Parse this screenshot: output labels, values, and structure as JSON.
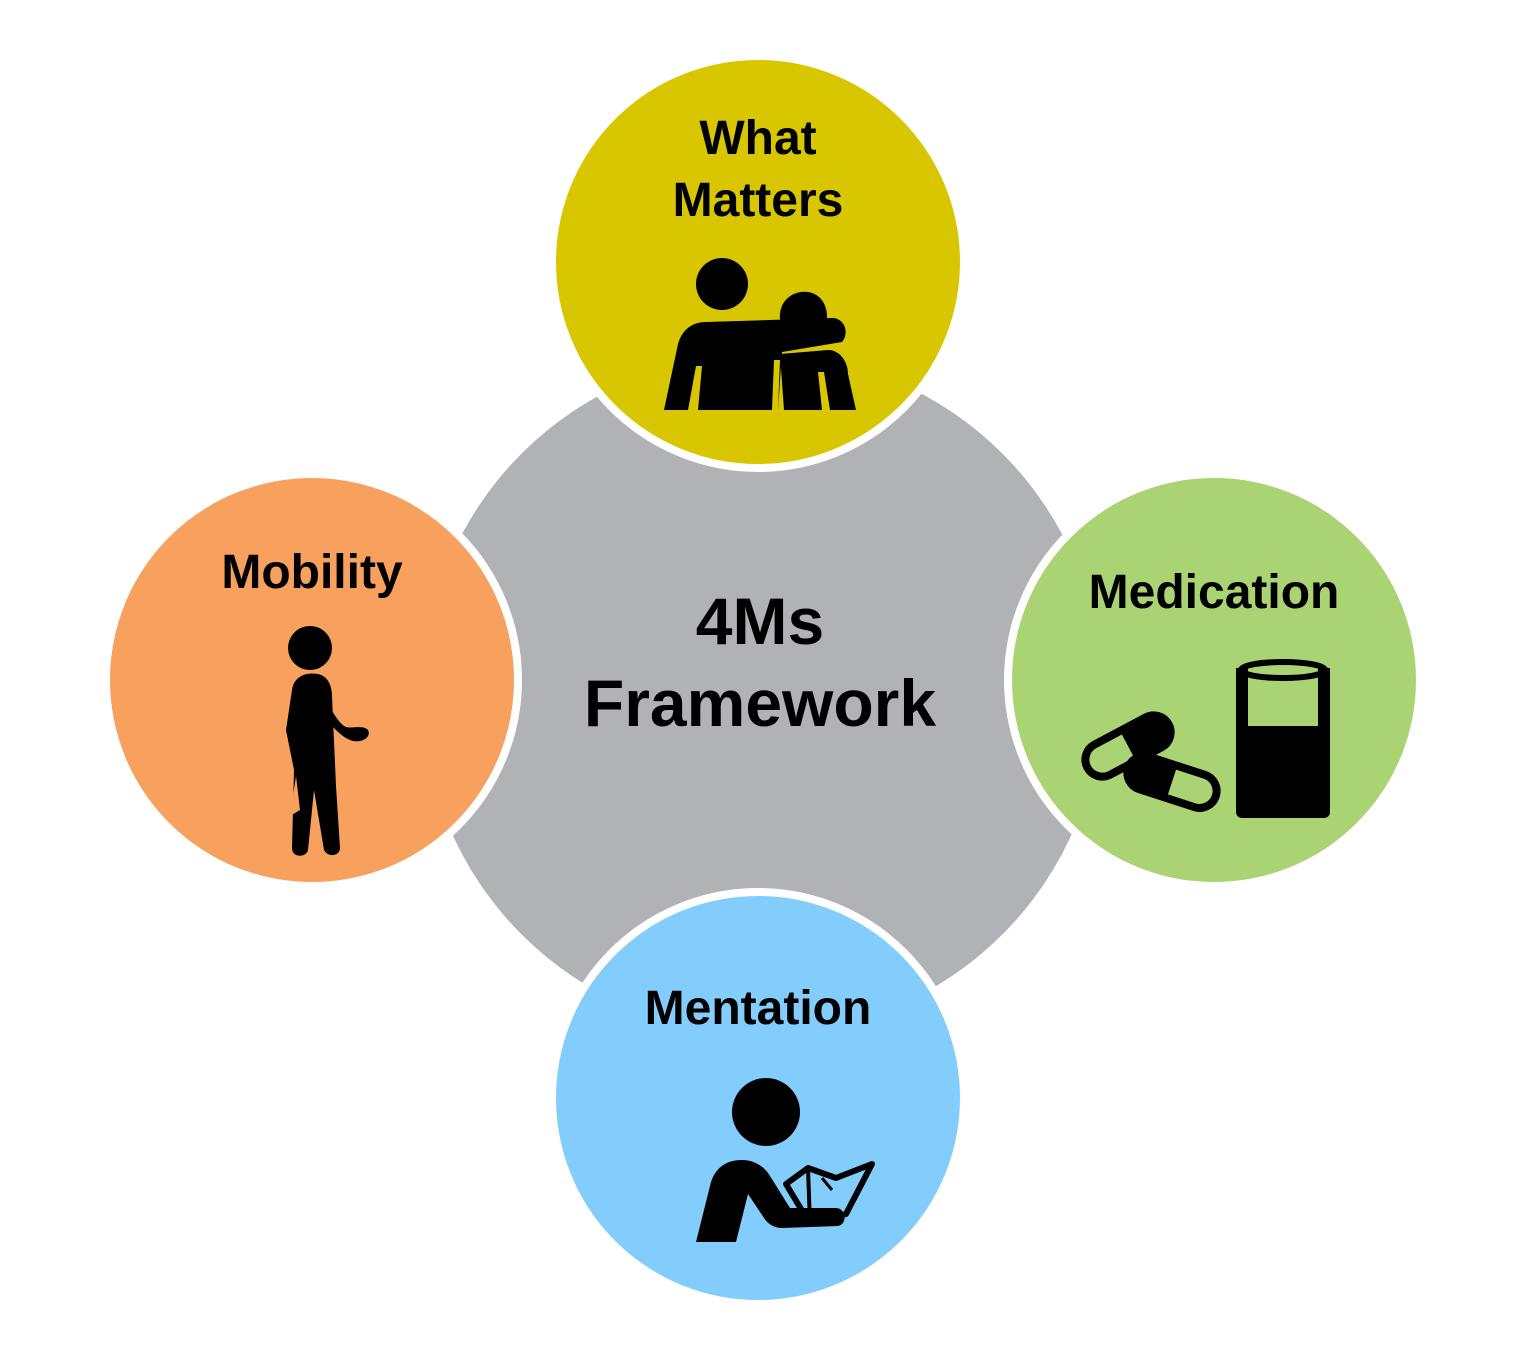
{
  "center": {
    "line1": "4Ms",
    "line2": "Framework",
    "color": "#b1b2b5"
  },
  "nodes": {
    "what_matters": {
      "line1": "What",
      "line2": "Matters",
      "color": "#d8c700",
      "icon": "two-people-embrace-icon"
    },
    "mobility": {
      "label": "Mobility",
      "color": "#f8a05e",
      "icon": "person-walking-icon"
    },
    "medication": {
      "label": "Medication",
      "color": "#aad473",
      "icon": "pills-and-glass-icon"
    },
    "mentation": {
      "label": "Mentation",
      "color": "#82cdfc",
      "icon": "person-reading-icon"
    }
  }
}
